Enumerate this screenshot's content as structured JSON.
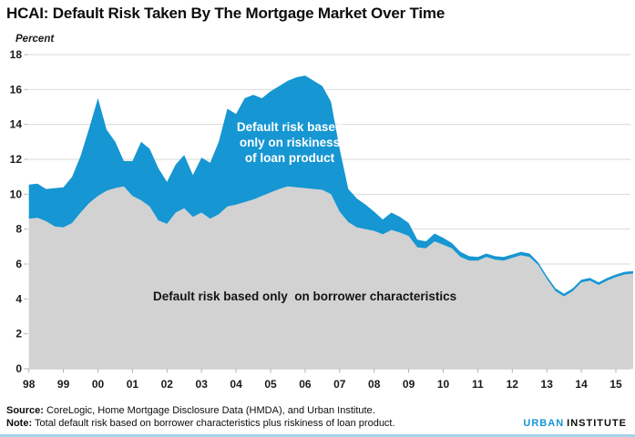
{
  "chart_data": {
    "type": "area",
    "stacked": true,
    "title": "HCAI: Default Risk Taken By The Mortgage Market Over Time",
    "xlabel": "",
    "ylabel": "Percent",
    "ylim": [
      0,
      18
    ],
    "xlim": [
      1998,
      2015.5
    ],
    "y_ticks": [
      0,
      2,
      4,
      6,
      8,
      10,
      12,
      14,
      16,
      18
    ],
    "x_tick_labels": [
      "98",
      "99",
      "00",
      "01",
      "02",
      "03",
      "04",
      "05",
      "06",
      "07",
      "08",
      "09",
      "10",
      "11",
      "12",
      "13",
      "14",
      "15"
    ],
    "grid": "horizontal gridlines only",
    "legend": "none (direct labels inside areas)",
    "x": [
      1998.0,
      1998.25,
      1998.5,
      1998.75,
      1999.0,
      1999.25,
      1999.5,
      1999.75,
      2000.0,
      2000.25,
      2000.5,
      2000.75,
      2001.0,
      2001.25,
      2001.5,
      2001.75,
      2002.0,
      2002.25,
      2002.5,
      2002.75,
      2003.0,
      2003.25,
      2003.5,
      2003.75,
      2004.0,
      2004.25,
      2004.5,
      2004.75,
      2005.0,
      2005.25,
      2005.5,
      2005.75,
      2006.0,
      2006.25,
      2006.5,
      2006.75,
      2007.0,
      2007.25,
      2007.5,
      2007.75,
      2008.0,
      2008.25,
      2008.5,
      2008.75,
      2009.0,
      2009.25,
      2009.5,
      2009.75,
      2010.0,
      2010.25,
      2010.5,
      2010.75,
      2011.0,
      2011.25,
      2011.5,
      2011.75,
      2012.0,
      2012.25,
      2012.5,
      2012.75,
      2013.0,
      2013.25,
      2013.5,
      2013.75,
      2014.0,
      2014.25,
      2014.5,
      2014.75,
      2015.0,
      2015.25,
      2015.5
    ],
    "series": [
      {
        "name": "Default risk based only on borrower characteristics",
        "color": "#d2d2d2",
        "values": [
          8.6,
          8.65,
          8.45,
          8.15,
          8.1,
          8.35,
          8.95,
          9.5,
          9.9,
          10.2,
          10.35,
          10.45,
          9.9,
          9.65,
          9.3,
          8.5,
          8.3,
          8.95,
          9.2,
          8.7,
          8.95,
          8.6,
          8.85,
          9.3,
          9.4,
          9.55,
          9.7,
          9.9,
          10.1,
          10.3,
          10.45,
          10.4,
          10.35,
          10.3,
          10.25,
          10.0,
          9.0,
          8.4,
          8.1,
          8.0,
          7.9,
          7.7,
          7.95,
          7.8,
          7.6,
          6.95,
          6.9,
          7.3,
          7.1,
          6.9,
          6.4,
          6.2,
          6.2,
          6.4,
          6.25,
          6.2,
          6.35,
          6.5,
          6.4,
          5.95,
          5.15,
          4.45,
          4.15,
          4.45,
          4.95,
          5.05,
          4.8,
          5.05,
          5.25,
          5.4,
          5.45
        ]
      },
      {
        "name": "Total default risk (borrower characteristics plus riskiness of loan product)",
        "band_label": "Default risk based only on riskiness of loan product",
        "color": "#1696d2",
        "values": [
          10.55,
          10.6,
          10.3,
          10.35,
          10.4,
          11.0,
          12.2,
          13.8,
          15.5,
          13.7,
          13.0,
          11.9,
          11.9,
          13.0,
          12.6,
          11.5,
          10.7,
          11.7,
          12.25,
          11.1,
          12.1,
          11.8,
          13.0,
          14.9,
          14.6,
          15.5,
          15.7,
          15.5,
          15.9,
          16.2,
          16.5,
          16.7,
          16.8,
          16.5,
          16.2,
          15.3,
          12.6,
          10.3,
          9.75,
          9.4,
          9.0,
          8.55,
          8.95,
          8.7,
          8.35,
          7.4,
          7.3,
          7.75,
          7.5,
          7.2,
          6.7,
          6.45,
          6.4,
          6.6,
          6.45,
          6.4,
          6.55,
          6.7,
          6.6,
          6.1,
          5.3,
          4.6,
          4.3,
          4.6,
          5.1,
          5.2,
          4.95,
          5.2,
          5.4,
          5.55,
          5.6
        ]
      }
    ],
    "annotations": {
      "loan_product_lines": [
        "Default risk based",
        "only on riskiness",
        "of loan product"
      ],
      "borrower_text": "Default risk based only  on borrower characteristics"
    }
  },
  "footer": {
    "source_label": "Source:",
    "source_text": " CoreLogic, Home Mortgage Disclosure Data (HMDA), and Urban Institute.",
    "note_label": "Note:",
    "note_text": " Total default risk based on borrower characteristics plus riskiness of loan product.",
    "logo_urban": "URBAN",
    "logo_institute": "INSTITUTE"
  }
}
